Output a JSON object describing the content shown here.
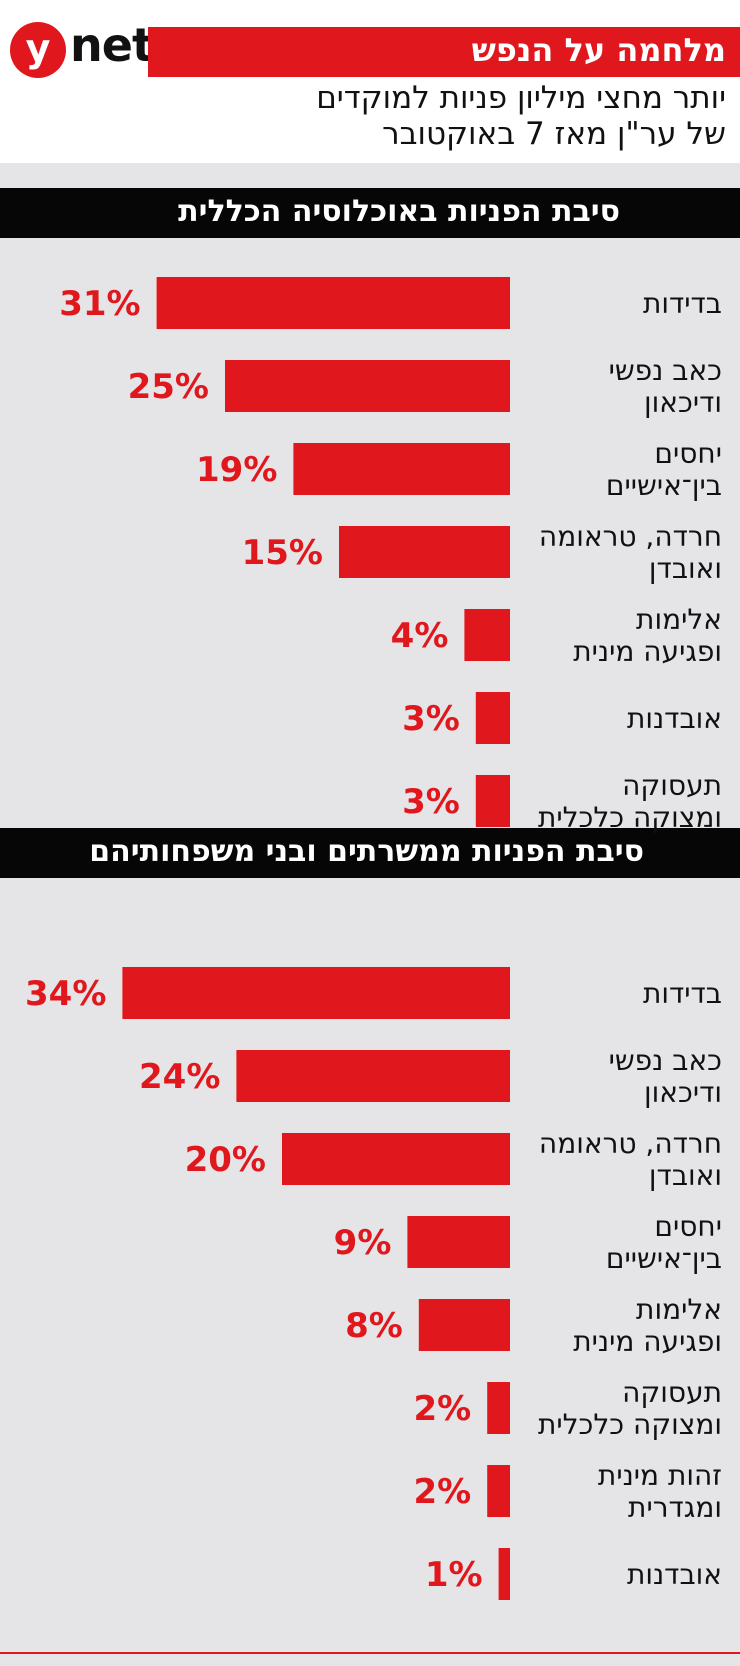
{
  "brand": {
    "logo_y": "y",
    "logo_net": "net"
  },
  "header": {
    "title": "מלחמה על הנפש",
    "subtitle_line1": "יותר מחצי מיליון פניות למוקדים",
    "subtitle_line2": "של ער\"ן מאז 7 באוקטובר"
  },
  "colors": {
    "accent": "#e0171c",
    "bar_header": "#060606",
    "background": "#e5e5e7"
  },
  "chart_data": [
    {
      "type": "bar",
      "title": "סיבת הפניות באוכלוסיה הכללית",
      "categories": [
        [
          "בדידות"
        ],
        [
          "כאב נפשי",
          "ודיכאון"
        ],
        [
          "יחסים",
          "בין־אישיים"
        ],
        [
          "חרדה, טראומה",
          "ואובדן"
        ],
        [
          "אלימות",
          "ופגיעה מינית"
        ],
        [
          "אובדנות"
        ],
        [
          "תעסוקה",
          "ומצוקה כלכלית"
        ]
      ],
      "values": [
        31,
        25,
        19,
        15,
        4,
        3,
        3
      ],
      "value_labels": [
        "31%",
        "25%",
        "19%",
        "15%",
        "4%",
        "3%",
        "3%"
      ]
    },
    {
      "type": "bar",
      "title": "סיבת הפניות ממשרתים ובני משפחותיהם",
      "categories": [
        [
          "בדידות"
        ],
        [
          "כאב נפשי",
          "ודיכאון"
        ],
        [
          "חרדה, טראומה",
          "ואובדן"
        ],
        [
          "יחסים",
          "בין־אישיים"
        ],
        [
          "אלימות",
          "ופגיעה מינית"
        ],
        [
          "תעסוקה",
          "ומצוקה כלכלית"
        ],
        [
          "זהות מינית",
          "ומגדרית"
        ],
        [
          "אובדנות"
        ]
      ],
      "values": [
        34,
        24,
        20,
        9,
        8,
        2,
        2,
        1
      ],
      "value_labels": [
        "34%",
        "24%",
        "20%",
        "9%",
        "8%",
        "2%",
        "2%",
        "1%"
      ]
    }
  ]
}
